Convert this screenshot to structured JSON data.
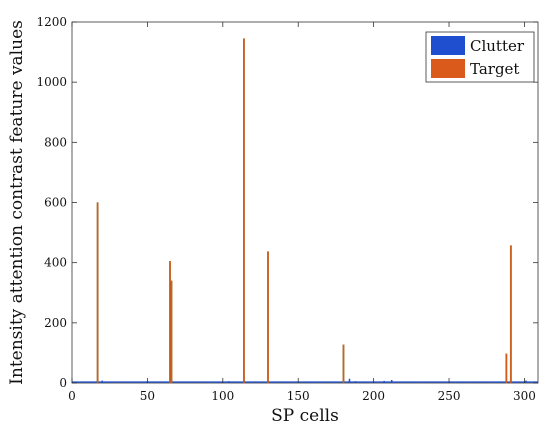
{
  "chart_data": {
    "type": "bar",
    "title": "",
    "xlabel": "SP cells",
    "ylabel": "Intensity attention contrast feature values",
    "xlim": [
      0,
      309
    ],
    "ylim": [
      0,
      1200
    ],
    "x_ticks": [
      0,
      50,
      100,
      150,
      200,
      250,
      300
    ],
    "y_ticks": [
      0,
      200,
      400,
      600,
      800,
      1000,
      1200
    ],
    "grid": false,
    "legend_position": "top-right",
    "series": [
      {
        "name": "Clutter",
        "color": "#1f4fcf",
        "x": [
          3,
          9,
          15,
          20,
          26,
          33,
          38,
          44,
          50,
          57,
          62,
          70,
          76,
          83,
          90,
          97,
          104,
          110,
          118,
          124,
          135,
          142,
          150,
          158,
          166,
          174,
          184,
          188,
          194,
          200,
          207,
          212,
          219,
          226,
          234,
          242,
          250,
          258,
          266,
          274,
          282,
          295,
          301,
          306
        ],
        "values": [
          3,
          4,
          2,
          8,
          3,
          2,
          4,
          3,
          6,
          3,
          4,
          5,
          3,
          2,
          4,
          3,
          6,
          2,
          3,
          4,
          3,
          5,
          4,
          3,
          2,
          4,
          14,
          6,
          5,
          4,
          7,
          10,
          4,
          3,
          2,
          5,
          3,
          4,
          3,
          2,
          4,
          3,
          8,
          5
        ]
      },
      {
        "name": "Target",
        "color": "#d95a1a",
        "x": [
          17,
          65,
          66,
          114,
          130,
          180,
          288,
          291
        ],
        "values": [
          600,
          405,
          340,
          1145,
          437,
          127,
          97,
          457
        ]
      }
    ]
  }
}
